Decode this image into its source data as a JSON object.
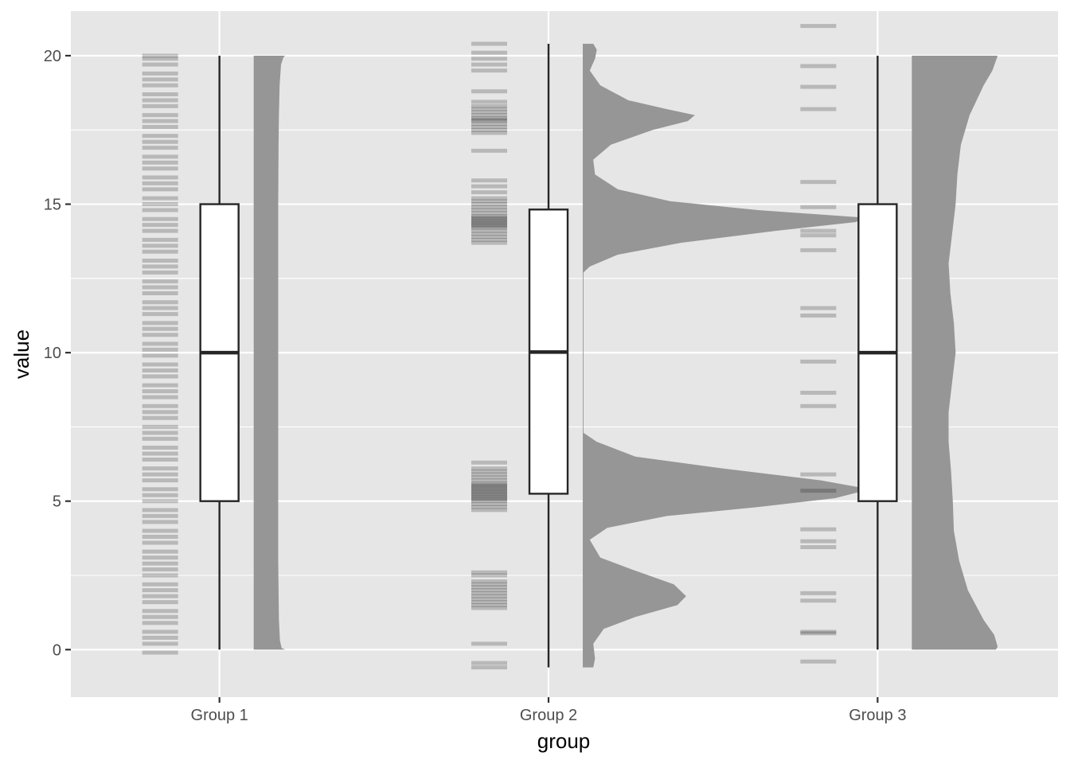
{
  "chart_data": {
    "type": "raincloud",
    "xlabel": "group",
    "ylabel": "value",
    "ylim": [
      -1.6,
      21.5
    ],
    "yticks": [
      0,
      5,
      10,
      15,
      20
    ],
    "grid": true,
    "categories": [
      "Group 1",
      "Group 2",
      "Group 3"
    ],
    "colors": {
      "panel": "#e6e6e6",
      "grid": "#ffffff",
      "density": "#969696",
      "rug": "#000000",
      "box_fill": "#ffffff",
      "box_line": "#262626",
      "tick_text": "#4d4d4d"
    },
    "groups": [
      {
        "name": "Group 1",
        "box": {
          "whisker_low": 0,
          "q1": 5,
          "median": 10,
          "q3": 15,
          "whisker_high": 20
        },
        "points": [
          -0.1,
          0.2,
          0.4,
          0.6,
          0.9,
          1.1,
          1.3,
          1.6,
          1.8,
          2.0,
          2.2,
          2.5,
          2.7,
          2.9,
          3.1,
          3.3,
          3.6,
          3.8,
          4.0,
          4.3,
          4.5,
          4.7,
          5.0,
          5.2,
          5.4,
          5.7,
          5.9,
          6.1,
          6.4,
          6.6,
          6.8,
          7.1,
          7.3,
          7.5,
          7.8,
          8.0,
          8.2,
          8.5,
          8.7,
          8.9,
          9.2,
          9.4,
          9.6,
          9.9,
          10.1,
          10.3,
          10.6,
          10.8,
          11.0,
          11.3,
          11.5,
          11.7,
          12.0,
          12.2,
          12.4,
          12.7,
          12.9,
          13.1,
          13.4,
          13.6,
          13.8,
          14.1,
          14.3,
          14.5,
          14.8,
          15.0,
          15.2,
          15.5,
          15.7,
          15.9,
          16.2,
          16.4,
          16.6,
          16.9,
          17.1,
          17.3,
          17.6,
          17.8,
          18.0,
          18.3,
          18.5,
          18.7,
          19.0,
          19.2,
          19.4,
          19.7,
          19.9,
          20.0
        ],
        "density": {
          "y": [
            0,
            0.05,
            0.3,
            1,
            2,
            3,
            5,
            8,
            10,
            12,
            15,
            17,
            18,
            19,
            19.7,
            19.95,
            20
          ],
          "w": [
            0.9,
            0.8,
            0.75,
            0.72,
            0.71,
            0.7,
            0.7,
            0.7,
            0.7,
            0.7,
            0.7,
            0.71,
            0.72,
            0.74,
            0.78,
            0.85,
            0.9
          ]
        }
      },
      {
        "name": "Group 2",
        "box": {
          "whisker_low": -0.6,
          "q1": 5.25,
          "median": 10.02,
          "q3": 14.82,
          "whisker_high": 20.4
        },
        "points": [
          -0.6,
          -0.45,
          0.2,
          1.4,
          1.5,
          1.6,
          1.7,
          1.8,
          1.9,
          2.0,
          2.1,
          2.2,
          2.3,
          2.5,
          2.6,
          4.7,
          4.8,
          4.9,
          5.0,
          5.05,
          5.1,
          5.15,
          5.2,
          5.25,
          5.3,
          5.35,
          5.4,
          5.45,
          5.5,
          5.55,
          5.6,
          5.7,
          5.8,
          5.9,
          6.0,
          6.1,
          6.3,
          13.7,
          13.8,
          13.9,
          14.0,
          14.1,
          14.2,
          14.25,
          14.3,
          14.35,
          14.4,
          14.45,
          14.5,
          14.55,
          14.6,
          14.7,
          14.8,
          14.9,
          15.0,
          15.1,
          15.2,
          15.4,
          15.6,
          15.8,
          16.8,
          17.4,
          17.5,
          17.6,
          17.7,
          17.8,
          17.85,
          17.9,
          18.0,
          18.1,
          18.2,
          18.3,
          18.45,
          18.8,
          19.5,
          19.7,
          19.9,
          20.1,
          20.4
        ],
        "density": {
          "y": [
            -0.6,
            -0.3,
            0.2,
            0.7,
            1.1,
            1.5,
            1.8,
            2.2,
            2.7,
            3.1,
            3.7,
            4.1,
            4.5,
            4.8,
            5.1,
            5.4,
            5.7,
            6.1,
            6.5,
            7.0,
            7.2,
            7.3,
            12.7,
            12.9,
            13.3,
            13.7,
            14.1,
            14.4,
            14.55,
            14.8,
            15.1,
            15.5,
            16.0,
            16.5,
            17.0,
            17.5,
            17.8,
            18.0,
            18.2,
            18.5,
            19.0,
            19.5,
            19.9,
            20.2,
            20.4
          ],
          "w": [
            0.3,
            0.35,
            0.3,
            0.6,
            1.5,
            2.7,
            2.95,
            2.6,
            1.4,
            0.5,
            0.2,
            0.7,
            2.4,
            5.0,
            7.2,
            8.2,
            6.8,
            4.0,
            1.5,
            0.4,
            0.15,
            0.02,
            0.02,
            0.2,
            1.0,
            2.8,
            5.5,
            7.8,
            8.0,
            5.0,
            2.5,
            1.0,
            0.35,
            0.3,
            0.8,
            2.0,
            3.0,
            3.2,
            2.4,
            1.3,
            0.5,
            0.2,
            0.35,
            0.4,
            0.3
          ]
        }
      },
      {
        "name": "Group 3",
        "box": {
          "whisker_low": 0,
          "q1": 5,
          "median": 10,
          "q3": 15,
          "whisker_high": 20
        },
        "points": [
          -0.4,
          0.55,
          0.6,
          1.65,
          1.9,
          3.45,
          3.65,
          4.05,
          5.35,
          5.9,
          8.2,
          8.65,
          9.7,
          11.25,
          11.5,
          13.45,
          13.95,
          14.1,
          14.9,
          15.75,
          18.2,
          18.95,
          19.65,
          21.0
        ],
        "density": {
          "y": [
            0,
            0.1,
            0.5,
            1,
            2,
            3,
            4,
            5,
            6,
            7,
            8,
            9,
            10,
            11,
            12,
            13,
            14,
            15,
            16,
            17,
            18,
            19,
            19.5,
            19.9,
            20
          ],
          "w": [
            2.4,
            2.45,
            2.35,
            2.05,
            1.6,
            1.35,
            1.2,
            1.17,
            1.12,
            1.05,
            1.05,
            1.15,
            1.25,
            1.2,
            1.1,
            1.05,
            1.15,
            1.25,
            1.3,
            1.4,
            1.65,
            2.05,
            2.3,
            2.42,
            2.45
          ]
        }
      }
    ]
  }
}
